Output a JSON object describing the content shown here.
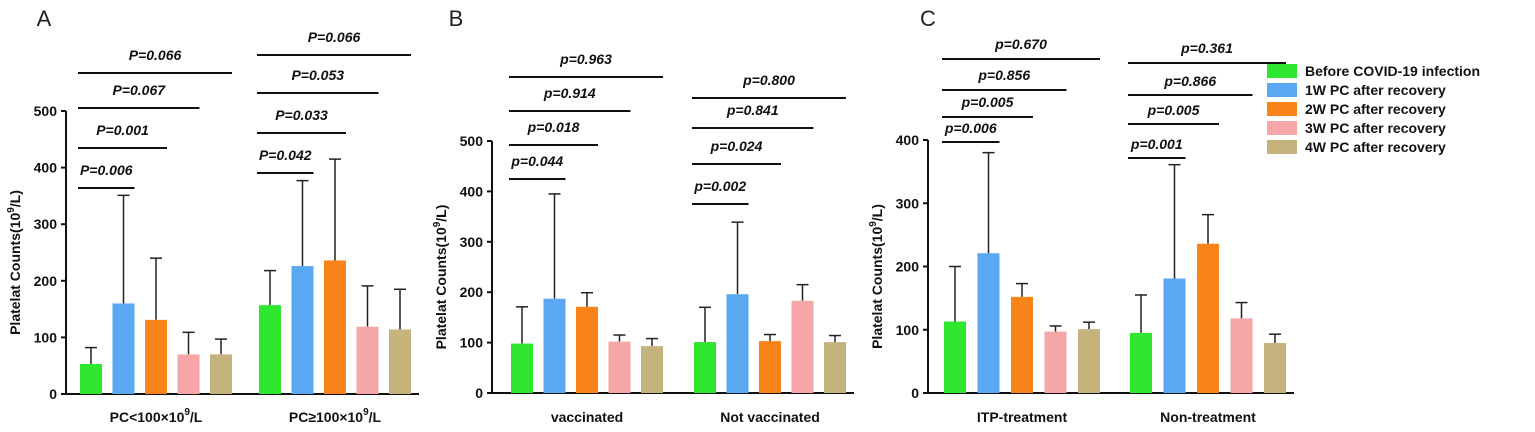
{
  "series": [
    {
      "name": "Before COVID-19 infection",
      "color": "#2ee62e"
    },
    {
      "name": "1W PC after recovery",
      "color": "#5aa7f2"
    },
    {
      "name": "2W PC after recovery",
      "color": "#f8841a"
    },
    {
      "name": "3W PC after recovery",
      "color": "#f6a6a6"
    },
    {
      "name": "4W PC after recovery",
      "color": "#c5b37d"
    }
  ],
  "chart_data": [
    {
      "panel": "A",
      "type": "bar",
      "ylabel": "Platelat Counts(10^9/L)",
      "ylabel_base": "Platelat Counts(10",
      "ylabel_sup": "9",
      "ylabel_tail": "/L)",
      "ylim": [
        0,
        500
      ],
      "yticks": [
        0,
        100,
        200,
        300,
        400,
        500
      ],
      "groups": [
        {
          "label": "PC<100×10^9/L",
          "label_base": "PC<100×10",
          "label_sup": "9",
          "label_tail": "/L",
          "values": [
            53,
            160,
            131,
            70,
            70
          ],
          "errors": [
            82,
            351,
            240,
            109,
            97
          ],
          "pvalues": [
            "P=0.006",
            "P=0.001",
            "P=0.067",
            "P=0.066"
          ]
        },
        {
          "label": "PC≥100×10^9/L",
          "label_base": "PC≥100×10",
          "label_sup": "9",
          "label_tail": "/L",
          "values": [
            157,
            226,
            236,
            119,
            114
          ],
          "errors": [
            218,
            377,
            415,
            191,
            185
          ],
          "pvalues": [
            "P=0.042",
            "P=0.033",
            "P=0.053",
            "P=0.066"
          ]
        }
      ]
    },
    {
      "panel": "B",
      "type": "bar",
      "ylabel": "Platelat Counts(10^9/L)",
      "ylabel_base": "Platelat Counts(10",
      "ylabel_sup": "9",
      "ylabel_tail": "/L)",
      "ylim": [
        0,
        500
      ],
      "yticks": [
        0,
        100,
        200,
        300,
        400,
        500
      ],
      "groups": [
        {
          "label": "vaccinated",
          "label_base": "vaccinated",
          "label_sup": "",
          "label_tail": "",
          "values": [
            98,
            187,
            171,
            102,
            93
          ],
          "errors": [
            171,
            395,
            199,
            115,
            108
          ],
          "pvalues": [
            "p=0.044",
            "p=0.018",
            "p=0.914",
            "p=0.963"
          ]
        },
        {
          "label": "Not vaccinated",
          "label_base": "Not vaccinated",
          "label_sup": "",
          "label_tail": "",
          "values": [
            101,
            196,
            103,
            183,
            101
          ],
          "errors": [
            170,
            339,
            116,
            215,
            114
          ],
          "pvalues": [
            "p=0.002",
            "p=0.024",
            "p=0.841",
            "p=0.800"
          ]
        }
      ]
    },
    {
      "panel": "C",
      "type": "bar",
      "ylabel": "Platelat Counts(10^9/L)",
      "ylabel_base": "Platelat Counts(10",
      "ylabel_sup": "9",
      "ylabel_tail": "/L)",
      "ylim": [
        0,
        400
      ],
      "yticks": [
        0,
        100,
        200,
        300,
        400
      ],
      "groups": [
        {
          "label": "ITP-treatment",
          "label_base": "ITP-treatment",
          "label_sup": "",
          "label_tail": "",
          "values": [
            113,
            221,
            152,
            97,
            101
          ],
          "errors": [
            200,
            380,
            173,
            106,
            112
          ],
          "pvalues": [
            "p=0.006",
            "p=0.005",
            "p=0.856",
            "p=0.670"
          ]
        },
        {
          "label": "Non-treatment",
          "label_base": "Non-treatment",
          "label_sup": "",
          "label_tail": "",
          "values": [
            95,
            181,
            236,
            118,
            79
          ],
          "errors": [
            155,
            361,
            282,
            143,
            93
          ],
          "pvalues": [
            "p=0.001",
            "p=0.005",
            "p=0.866",
            "p=0.361"
          ]
        }
      ]
    }
  ]
}
